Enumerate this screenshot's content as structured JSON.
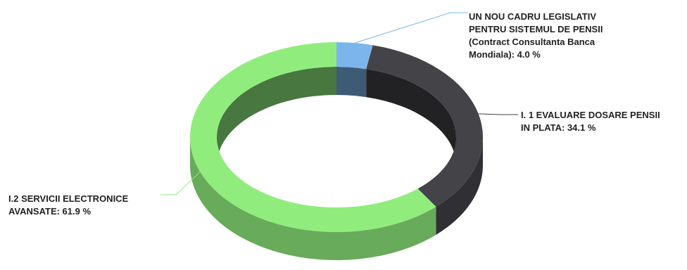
{
  "chart_data": {
    "type": "pie",
    "variant": "3d-donut",
    "title": "",
    "legend": "none",
    "slices": [
      {
        "label_lines": [
          "UN NOU CADRU LEGISLATIV",
          "PENTRU SISTEMUL DE PENSII",
          "(Contract Consultanta Banca",
          "Mondiala): 4.0 %"
        ],
        "value": 4.0,
        "color": "#7cb5ec"
      },
      {
        "label_lines": [
          "I. 1 EVALUARE DOSARE PENSII",
          "IN PLATA: 34.1 %"
        ],
        "value": 34.1,
        "color": "#434348"
      },
      {
        "label_lines": [
          "I.2 SERVICII ELECTRONICE",
          "AVANSATE: 61.9 %"
        ],
        "value": 61.9,
        "color": "#90ed7d"
      }
    ]
  }
}
